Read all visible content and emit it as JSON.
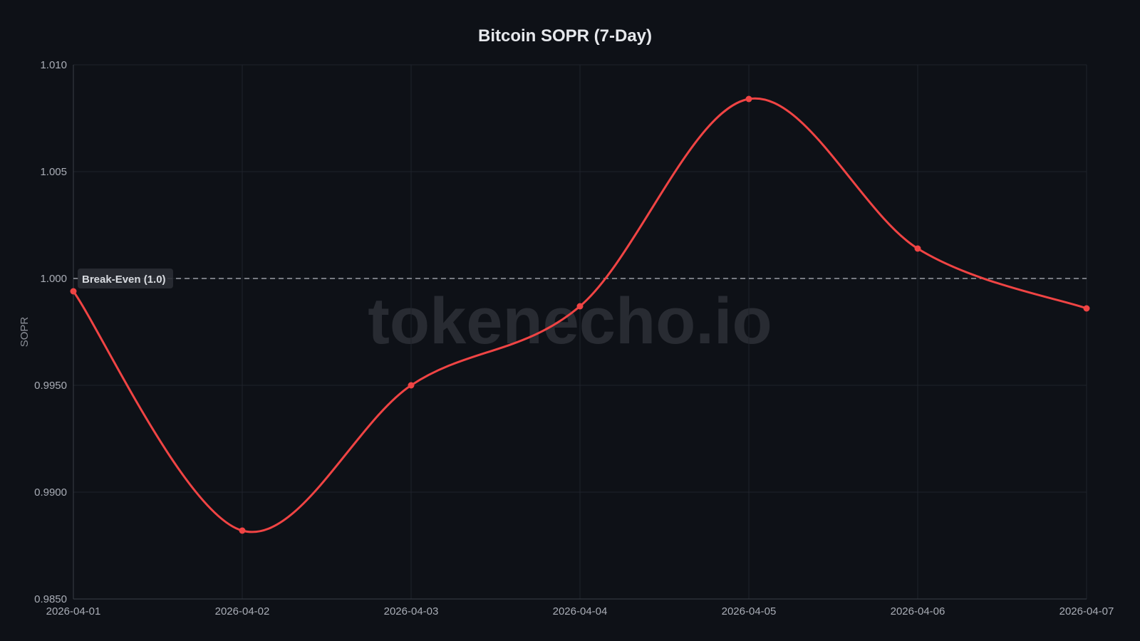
{
  "chart_data": {
    "type": "line",
    "title": "Bitcoin SOPR (7-Day)",
    "xlabel": "",
    "ylabel": "SOPR",
    "x": [
      "2026-04-01",
      "2026-04-02",
      "2026-04-03",
      "2026-04-04",
      "2026-04-05",
      "2026-04-06",
      "2026-04-07"
    ],
    "series": [
      {
        "values": [
          0.9994,
          0.9882,
          0.995,
          0.9987,
          1.0084,
          1.0014,
          0.9986
        ],
        "color": "#f04444"
      }
    ],
    "ylim": [
      0.985,
      1.01
    ],
    "yticks": [
      1.01,
      1.005,
      1.0,
      0.995,
      0.99,
      0.985
    ],
    "ytick_labels": [
      "1.010",
      "1.005",
      "1.000",
      "0.9950",
      "0.9900",
      "0.9850"
    ],
    "grid": true,
    "reference_line": {
      "value": 1.0,
      "label": "Break-Even (1.0)",
      "style": "dashed"
    },
    "watermark": "tokenecho.io",
    "colors": {
      "background": "#0e1117",
      "line": "#f04444",
      "grid": "#1f232b",
      "text": "#a9adb6"
    }
  }
}
